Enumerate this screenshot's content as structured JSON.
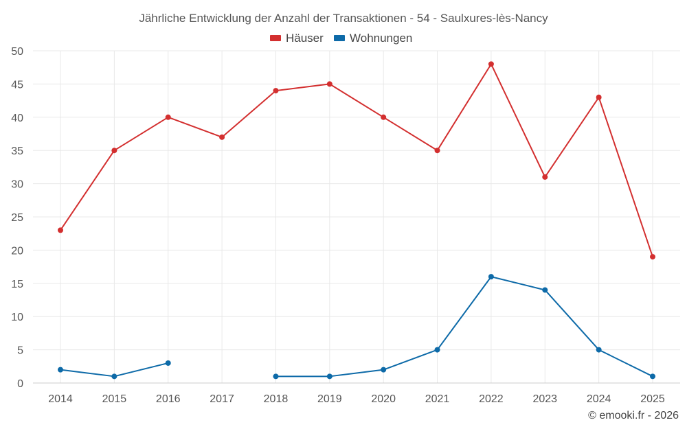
{
  "chart_data": {
    "type": "line",
    "title": "Jährliche Entwicklung der Anzahl der Transaktionen - 54 - Saulxures-lès-Nancy",
    "categories": [
      "2014",
      "2015",
      "2016",
      "2017",
      "2018",
      "2019",
      "2020",
      "2021",
      "2022",
      "2023",
      "2024",
      "2025"
    ],
    "y_ticks": [
      "0",
      "5",
      "10",
      "15",
      "20",
      "25",
      "30",
      "35",
      "40",
      "45",
      "50"
    ],
    "ylim": [
      0,
      50
    ],
    "xlabel": "",
    "ylabel": "",
    "grid": true,
    "legend_position": "top-center",
    "series": [
      {
        "name": "Häuser",
        "color": "#d32f2f",
        "values": [
          23,
          35,
          40,
          37,
          44,
          45,
          40,
          35,
          48,
          31,
          43,
          19
        ]
      },
      {
        "name": "Wohnungen",
        "color": "#0d6aa8",
        "values": [
          2,
          1,
          3,
          null,
          1,
          1,
          2,
          5,
          16,
          14,
          5,
          1
        ]
      }
    ]
  },
  "credit": "© emooki.fr - 2026"
}
